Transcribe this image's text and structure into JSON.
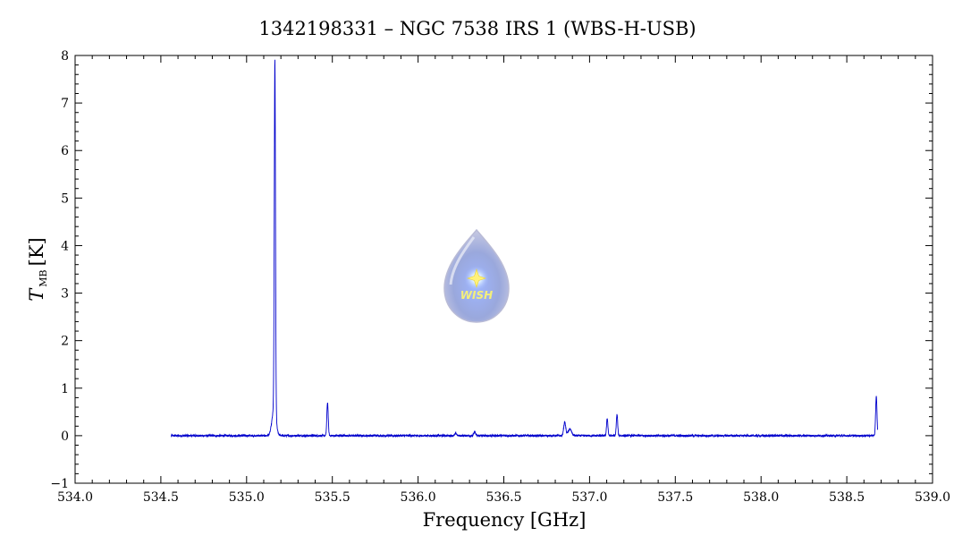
{
  "chart_data": {
    "type": "line",
    "title": "1342198331 – NGC 7538 IRS 1 (WBS-H-USB)",
    "xlabel": "Frequency [GHz]",
    "ylabel_main": "T",
    "ylabel_sub": "MB",
    "ylabel_unit": "[K]",
    "xlim": [
      534.0,
      539.0
    ],
    "ylim": [
      -1,
      8
    ],
    "x_ticks": [
      "534.0",
      "534.5",
      "535.0",
      "535.5",
      "536.0",
      "536.5",
      "537.0",
      "537.5",
      "538.0",
      "538.5",
      "539.0"
    ],
    "y_ticks": [
      "−1",
      "0",
      "1",
      "2",
      "3",
      "4",
      "5",
      "6",
      "7",
      "8"
    ],
    "grid": false,
    "line_color": "#0000cc",
    "series": [
      {
        "x_range": [
          534.56,
          538.68
        ],
        "baseline": 0.0,
        "noise": 0.02,
        "peaks": [
          {
            "x": 535.165,
            "y": 7.42,
            "width": 0.0035
          },
          {
            "x": 535.16,
            "y": 0.55,
            "width": 0.012
          },
          {
            "x": 535.472,
            "y": 0.7,
            "width": 0.004
          },
          {
            "x": 536.855,
            "y": 0.28,
            "width": 0.006
          },
          {
            "x": 536.885,
            "y": 0.14,
            "width": 0.01
          },
          {
            "x": 537.103,
            "y": 0.36,
            "width": 0.004
          },
          {
            "x": 537.16,
            "y": 0.44,
            "width": 0.004
          },
          {
            "x": 538.672,
            "y": 0.82,
            "width": 0.004
          },
          {
            "x": 536.33,
            "y": 0.08,
            "width": 0.005
          },
          {
            "x": 536.22,
            "y": 0.05,
            "width": 0.005
          }
        ]
      }
    ]
  },
  "logo": {
    "text": "WISH"
  }
}
